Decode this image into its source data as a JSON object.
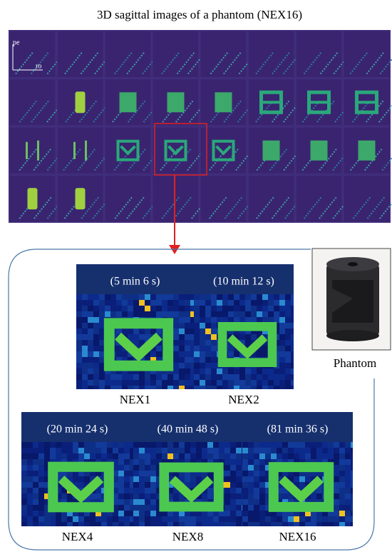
{
  "title": "3D sagittal images of a phantom (NEX16)",
  "axes": {
    "vertical": "pe",
    "horizontal": "ro"
  },
  "panels": [
    {
      "label": "NEX1",
      "time": "(5 min 6 s)"
    },
    {
      "label": "NEX2",
      "time": "(10 min 12 s)"
    },
    {
      "label": "NEX4",
      "time": "(20 min 24 s)"
    },
    {
      "label": "NEX8",
      "time": "(40 min 48 s)"
    },
    {
      "label": "NEX16",
      "time": "(81 min 36 s)"
    }
  ],
  "photo_label": "Phantom"
}
